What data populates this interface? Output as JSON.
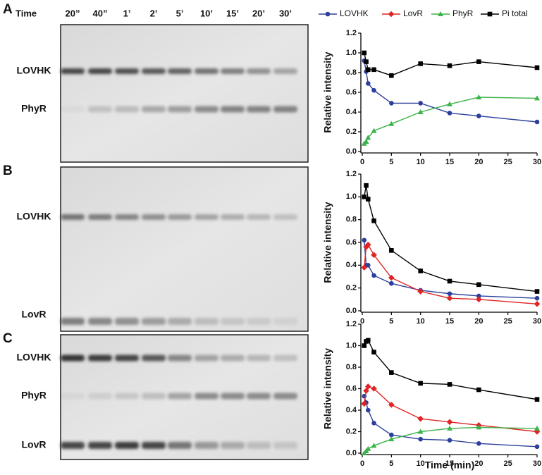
{
  "time_header": {
    "label": "Time",
    "lanes": [
      "20”",
      "40”",
      "1’",
      "2’",
      "5’",
      "10’",
      "15’",
      "20’",
      "30’"
    ]
  },
  "panels": [
    {
      "letter": "A",
      "bands": [
        "LOVHK",
        "PhyR"
      ]
    },
    {
      "letter": "B",
      "bands": [
        "LOVHK",
        "LovR"
      ]
    },
    {
      "letter": "C",
      "bands": [
        "LOVHK",
        "PhyR",
        "LovR"
      ]
    }
  ],
  "chart_data": [
    {
      "type": "line",
      "y_label": "Relative intensity",
      "x": [
        0.33,
        0.67,
        1,
        2,
        5,
        10,
        15,
        20,
        30
      ],
      "xlim": [
        0,
        30
      ],
      "xticks": [
        0,
        5,
        10,
        15,
        20,
        25,
        30
      ],
      "ylim": [
        0,
        1.2
      ],
      "yticks": [
        {
          "value": 0,
          "label": "0.0"
        },
        0.2,
        0.4,
        0.6,
        0.8,
        {
          "value": 1,
          "label": "1.0"
        },
        1.2
      ],
      "series": [
        {
          "name": "LOVHK",
          "color": "#2c3f9c",
          "marker": "circle",
          "values": [
            0.92,
            0.81,
            0.69,
            0.62,
            0.49,
            0.49,
            0.39,
            0.36,
            0.3
          ]
        },
        {
          "name": "PhyR",
          "color": "#3cb34a",
          "marker": "triangle",
          "values": [
            0.08,
            0.1,
            0.14,
            0.21,
            0.28,
            0.4,
            0.48,
            0.55,
            0.54
          ]
        },
        {
          "name": "Pi total",
          "color": "#000000",
          "marker": "square",
          "values": [
            1.0,
            0.91,
            0.83,
            0.83,
            0.77,
            0.89,
            0.87,
            0.91,
            0.85
          ]
        }
      ]
    },
    {
      "type": "line",
      "y_label": "Relative intensity",
      "x": [
        0.33,
        0.67,
        1,
        2,
        5,
        10,
        15,
        20,
        30
      ],
      "xlim": [
        0,
        30
      ],
      "xticks": [
        0,
        5,
        10,
        15,
        20,
        25,
        30
      ],
      "ylim": [
        0,
        1.2
      ],
      "yticks": [
        {
          "value": 0,
          "label": "0.0"
        },
        0.2,
        0.4,
        0.6,
        0.8,
        {
          "value": 1,
          "label": "1.0"
        },
        1.2
      ],
      "series": [
        {
          "name": "LOVHK",
          "color": "#2c3f9c",
          "marker": "circle",
          "values": [
            0.62,
            0.4,
            0.4,
            0.31,
            0.24,
            0.18,
            0.15,
            0.13,
            0.11
          ]
        },
        {
          "name": "LovR",
          "color": "#e02424",
          "marker": "diamond",
          "values": [
            0.38,
            0.56,
            0.58,
            0.49,
            0.29,
            0.17,
            0.11,
            0.1,
            0.06
          ]
        },
        {
          "name": "Pi total",
          "color": "#000000",
          "marker": "square",
          "values": [
            1.0,
            1.1,
            0.98,
            0.79,
            0.53,
            0.35,
            0.26,
            0.23,
            0.17
          ]
        }
      ]
    },
    {
      "type": "line",
      "y_label": "Relative intensity",
      "x_label": "Time (min)",
      "x": [
        0.33,
        0.67,
        1,
        2,
        5,
        10,
        15,
        20,
        30
      ],
      "xlim": [
        0,
        30
      ],
      "xticks": [
        0,
        5,
        10,
        15,
        20,
        25,
        30
      ],
      "ylim": [
        0,
        1.2
      ],
      "yticks": [
        {
          "value": 0,
          "label": "0.0"
        },
        0.2,
        0.4,
        0.6,
        0.8,
        {
          "value": 1,
          "label": "1.0"
        },
        1.2
      ],
      "series": [
        {
          "name": "LOVHK",
          "color": "#2c3f9c",
          "marker": "circle",
          "values": [
            0.53,
            0.47,
            0.4,
            0.28,
            0.17,
            0.13,
            0.12,
            0.09,
            0.06
          ]
        },
        {
          "name": "LovR",
          "color": "#e02424",
          "marker": "diamond",
          "values": [
            0.46,
            0.58,
            0.62,
            0.6,
            0.45,
            0.32,
            0.29,
            0.26,
            0.2
          ]
        },
        {
          "name": "PhyR",
          "color": "#3cb34a",
          "marker": "triangle",
          "values": [
            0.0,
            0.02,
            0.04,
            0.07,
            0.13,
            0.2,
            0.23,
            0.24,
            0.23
          ]
        },
        {
          "name": "Pi total",
          "color": "#000000",
          "marker": "square",
          "values": [
            1.0,
            1.04,
            1.05,
            0.94,
            0.75,
            0.65,
            0.64,
            0.59,
            0.5
          ]
        }
      ]
    }
  ]
}
